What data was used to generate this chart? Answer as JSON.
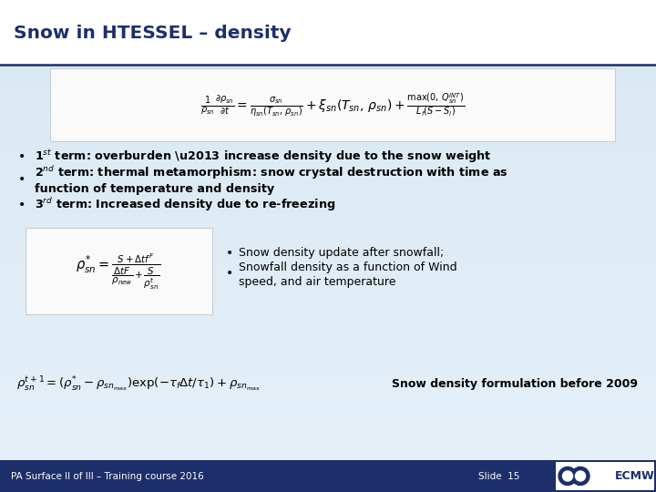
{
  "title": "Snow in HTESSEL – density",
  "title_color": "#1C2F6B",
  "background_top": "#DEEAF5",
  "background_bottom": "#C5D8EC",
  "header_bg": "#E8F0F8",
  "header_underline_color": "#1C2F6B",
  "footer_bg": "#1C2F6B",
  "footer_text": "PA Surface II of III – Training course 2016",
  "footer_slide": "Slide  15",
  "footer_text_color": "#FFFFFF",
  "bottom_note": "Snow density formulation before 2009",
  "eq_box_color": "#F5F5F5",
  "text_color": "#000000"
}
